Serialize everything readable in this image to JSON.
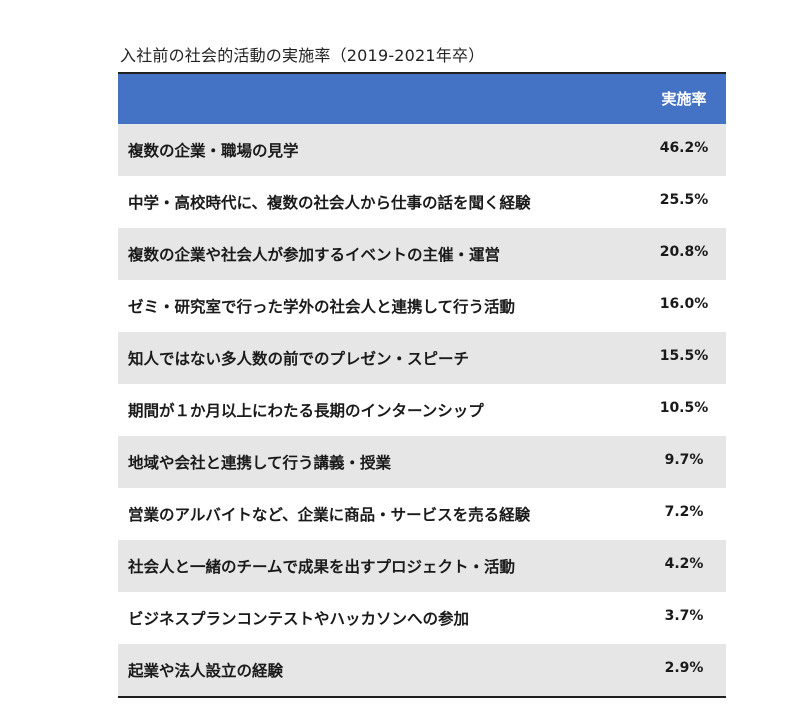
{
  "chart_data": {
    "type": "table",
    "title": "入社前の社会的活動の実施率（2019-2021年卒）",
    "column_header": "実施率",
    "rows": [
      {
        "label": "複数の企業・職場の見学",
        "value": "46.2%"
      },
      {
        "label": "中学・高校時代に、複数の社会人から仕事の話を聞く経験",
        "value": "25.5%"
      },
      {
        "label": "複数の企業や社会人が参加するイベントの主催・運営",
        "value": "20.8%"
      },
      {
        "label": "ゼミ・研究室で行った学外の社会人と連携して行う活動",
        "value": "16.0%"
      },
      {
        "label": "知人ではない多人数の前でのプレゼン・スピーチ",
        "value": "15.5%"
      },
      {
        "label": "期間が１か月以上にわたる長期のインターンシップ",
        "value": "10.5%"
      },
      {
        "label": "地域や会社と連携して行う講義・授業",
        "value": "9.7%"
      },
      {
        "label": "営業のアルバイトなど、企業に商品・サービスを売る経験",
        "value": "7.2%"
      },
      {
        "label": "社会人と一緒のチームで成果を出すプロジェクト・活動",
        "value": "4.2%"
      },
      {
        "label": "ビジネスプランコンテストやハッカソンへの参加",
        "value": "3.7%"
      },
      {
        "label": "起業や法人設立の経験",
        "value": "2.9%"
      }
    ],
    "header_color": "#4472c4",
    "stripe_color": "#e7e6e6"
  }
}
